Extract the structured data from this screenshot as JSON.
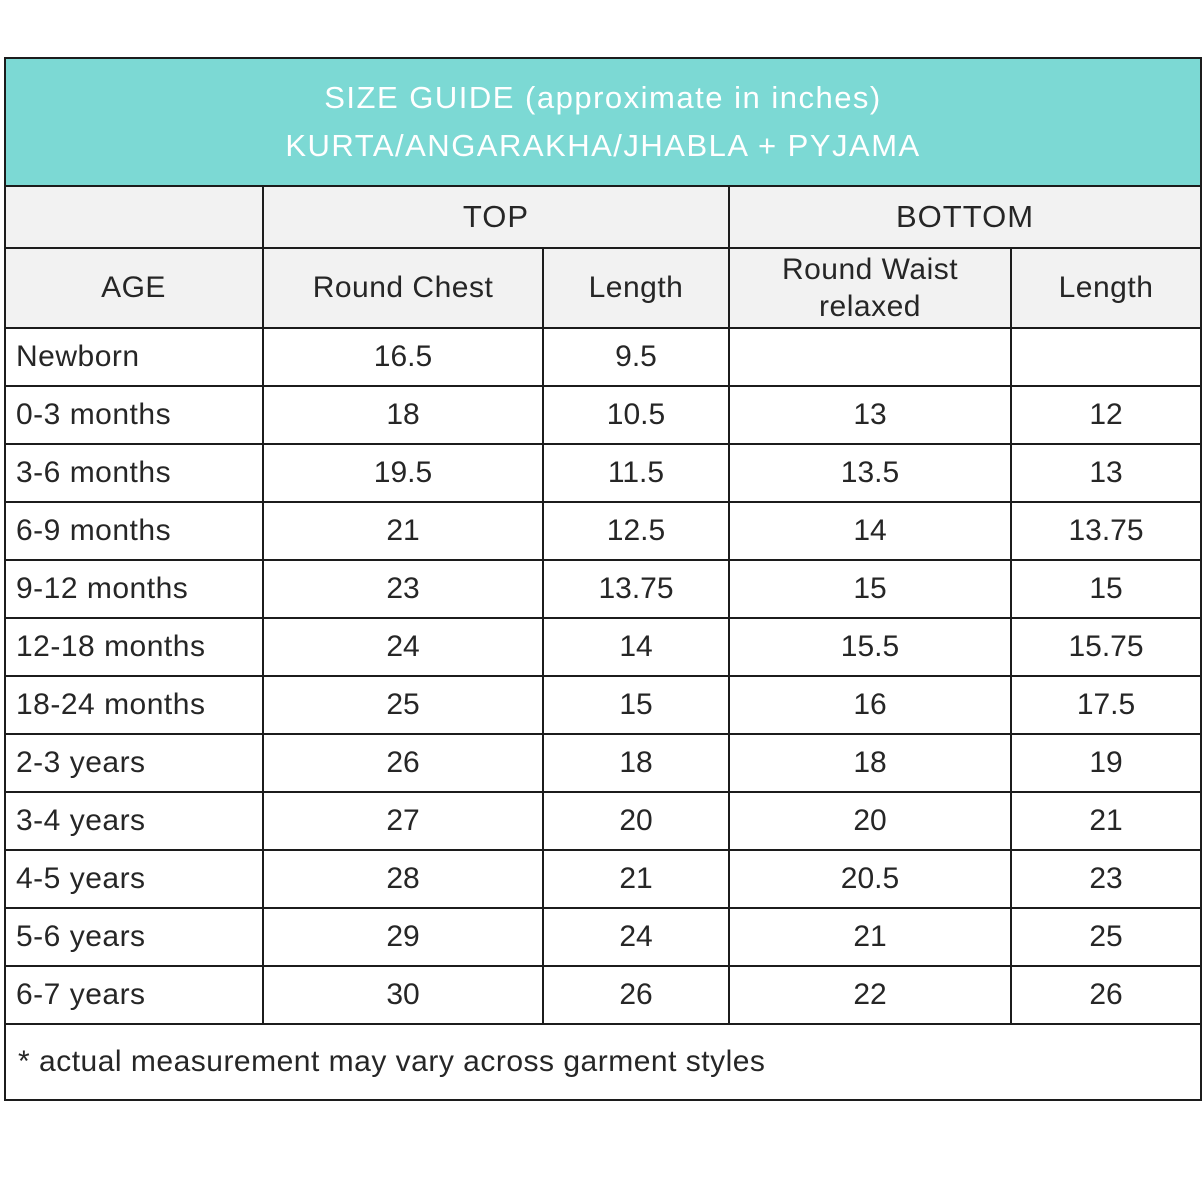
{
  "header": {
    "title_line1": "SIZE GUIDE (approximate in inches)",
    "title_line2": "KURTA/ANGARAKHA/JHABLA + PYJAMA"
  },
  "table": {
    "group_headers": {
      "top": "TOP",
      "bottom": "BOTTOM"
    },
    "column_headers": [
      "AGE",
      "Round Chest",
      "Length",
      "Round Waist relaxed",
      "Length"
    ],
    "rows": [
      {
        "cells": [
          "Newborn",
          "16.5",
          "9.5",
          "",
          ""
        ]
      },
      {
        "cells": [
          "0-3 months",
          "18",
          "10.5",
          "13",
          "12"
        ]
      },
      {
        "cells": [
          "3-6 months",
          "19.5",
          "11.5",
          "13.5",
          "13"
        ]
      },
      {
        "cells": [
          "6-9 months",
          "21",
          "12.5",
          "14",
          "13.75"
        ]
      },
      {
        "cells": [
          "9-12 months",
          "23",
          "13.75",
          "15",
          "15"
        ]
      },
      {
        "cells": [
          "12-18 months",
          "24",
          "14",
          "15.5",
          "15.75"
        ]
      },
      {
        "cells": [
          "18-24 months",
          "25",
          "15",
          "16",
          "17.5"
        ]
      },
      {
        "cells": [
          "2-3 years",
          "26",
          "18",
          "18",
          "19"
        ]
      },
      {
        "cells": [
          "3-4 years",
          "27",
          "20",
          "20",
          "21"
        ]
      },
      {
        "cells": [
          "4-5 years",
          "28",
          "21",
          "20.5",
          "23"
        ]
      },
      {
        "cells": [
          "5-6 years",
          "29",
          "24",
          "21",
          "25"
        ]
      },
      {
        "cells": [
          "6-7 years",
          "30",
          "26",
          "22",
          "26"
        ]
      }
    ]
  },
  "footnote": "* actual measurement may vary across garment styles",
  "colors": {
    "accent_teal": "#7cd9d4",
    "header_gray": "#f2f2f2",
    "border": "#1c1c1c",
    "title_text": "#ffffff",
    "body_text": "#262626"
  },
  "chart_data": {
    "type": "table",
    "title": "SIZE GUIDE (approximate in inches) KURTA/ANGARAKHA/JHABLA + PYJAMA",
    "column_groups": [
      {
        "label": "TOP",
        "columns": [
          "Round Chest",
          "Length"
        ]
      },
      {
        "label": "BOTTOM",
        "columns": [
          "Round Waist relaxed",
          "Length"
        ]
      }
    ],
    "columns": [
      "AGE",
      "Round Chest",
      "Length",
      "Round Waist relaxed",
      "Length"
    ],
    "rows": [
      [
        "Newborn",
        16.5,
        9.5,
        null,
        null
      ],
      [
        "0-3 months",
        18,
        10.5,
        13,
        12
      ],
      [
        "3-6 months",
        19.5,
        11.5,
        13.5,
        13
      ],
      [
        "6-9 months",
        21,
        12.5,
        14,
        13.75
      ],
      [
        "9-12 months",
        23,
        13.75,
        15,
        15
      ],
      [
        "12-18 months",
        24,
        14,
        15.5,
        15.75
      ],
      [
        "18-24 months",
        25,
        15,
        16,
        17.5
      ],
      [
        "2-3 years",
        26,
        18,
        18,
        19
      ],
      [
        "3-4 years",
        27,
        20,
        20,
        21
      ],
      [
        "4-5 years",
        28,
        21,
        20.5,
        23
      ],
      [
        "5-6 years",
        29,
        24,
        21,
        25
      ],
      [
        "6-7 years",
        30,
        26,
        22,
        26
      ]
    ],
    "footnote": "* actual measurement may vary across garment styles"
  }
}
